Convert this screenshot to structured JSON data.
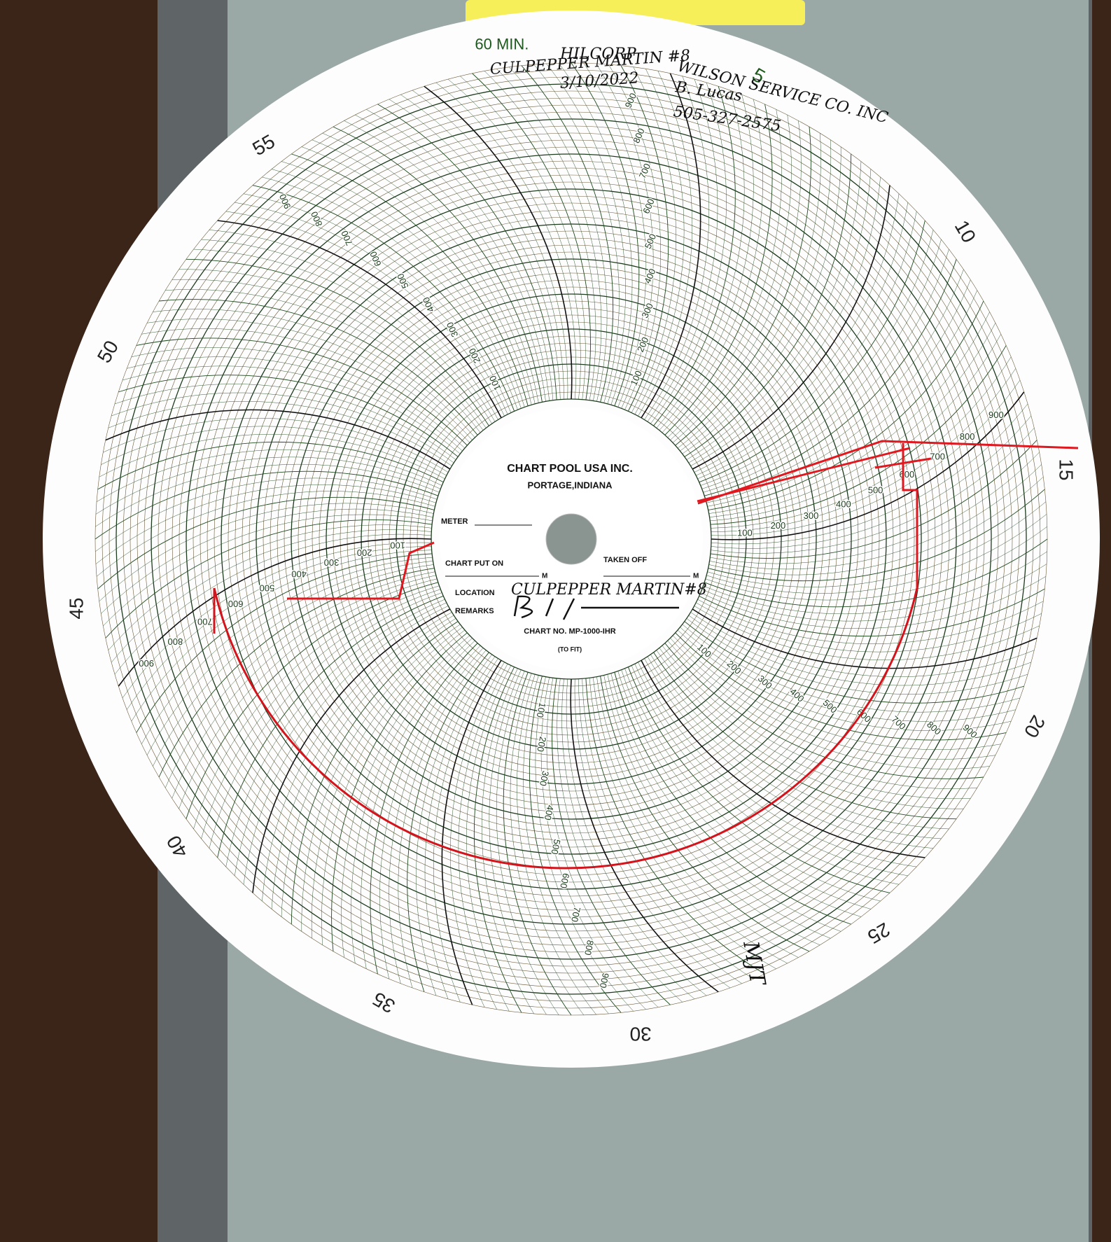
{
  "handwritten": {
    "company": "HILCORP",
    "well": "CULPEPPER MARTIN #8",
    "date": "3/10/2022",
    "service": "WILSON SERVICE CO. INC",
    "tech": "B. Lucas",
    "phone": "505-327-2575",
    "initials": "MJT"
  },
  "chart": {
    "minute_labels": [
      "60 MIN.",
      "5",
      "10",
      "15",
      "20",
      "25",
      "30",
      "35",
      "40",
      "45",
      "50",
      "55"
    ],
    "ring_labels": [
      "100",
      "200",
      "300",
      "400",
      "500",
      "600",
      "700",
      "800",
      "900"
    ],
    "center": {
      "company": "CHART POOL USA INC.",
      "city": "PORTAGE,INDIANA",
      "meter": "METER",
      "put_on": "CHART PUT ON",
      "taken_off": "TAKEN OFF",
      "unit": "M",
      "location": "LOCATION",
      "location_value": "CULPEPPER MARTIN#8",
      "remarks": "REMARKS",
      "chart_no": "CHART NO. MP-1000-IHR",
      "to_fit": "(TO FIT)"
    }
  }
}
